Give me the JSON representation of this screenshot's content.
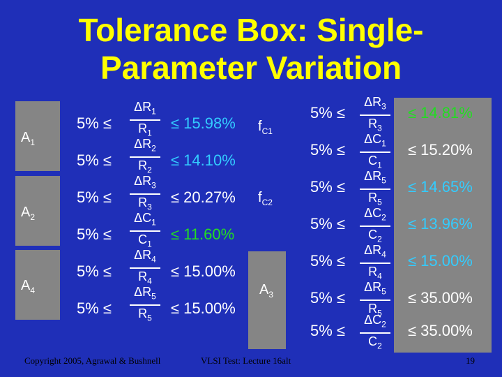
{
  "title_line1": "Tolerance Box: Single-",
  "title_line2": "Parameter Variation",
  "left": {
    "labels": [
      {
        "base": "A",
        "sub": "1"
      },
      {
        "base": "A",
        "sub": "2"
      },
      {
        "base": "A",
        "sub": "4"
      },
      {
        "base": "A",
        "sub": "3"
      }
    ],
    "rows": [
      {
        "lower": "5% ≤",
        "num": "ΔR",
        "num_sub": "1",
        "den": "R",
        "den_sub": "1",
        "upper": "≤ 15.98%"
      },
      {
        "lower": "5% ≤",
        "num": "ΔR",
        "num_sub": "2",
        "den": "R",
        "den_sub": "2",
        "upper": "≤ 14.10%"
      },
      {
        "lower": "5% ≤",
        "num": "ΔR",
        "num_sub": "3",
        "den": "R",
        "den_sub": "3",
        "upper": "≤ 20.27%"
      },
      {
        "lower": "5% ≤",
        "num": "ΔC",
        "num_sub": "1",
        "den": "C",
        "den_sub": "1",
        "upper": "≤ 11.60%"
      },
      {
        "lower": "5% ≤",
        "num": "ΔR",
        "num_sub": "4",
        "den": "R",
        "den_sub": "4",
        "upper": "≤ 15.00%"
      },
      {
        "lower": "5% ≤",
        "num": "ΔR",
        "num_sub": "5",
        "den": "R",
        "den_sub": "5",
        "upper": "≤ 15.00%"
      }
    ]
  },
  "mid_labels": [
    {
      "base": "f",
      "sub": "C1"
    },
    {
      "base": "f",
      "sub": "C2"
    }
  ],
  "right": {
    "rows": [
      {
        "lower": "5% ≤",
        "num": "ΔR",
        "num_sub": "3",
        "den": "R",
        "den_sub": "3",
        "upper": "≤ 14.81%"
      },
      {
        "lower": "5% ≤",
        "num": "ΔC",
        "num_sub": "1",
        "den": "C",
        "den_sub": "1",
        "upper": "≤ 15.20%"
      },
      {
        "lower": "5% ≤",
        "num": "ΔR",
        "num_sub": "5",
        "den": "R",
        "den_sub": "5",
        "upper": "≤ 14.65%"
      },
      {
        "lower": "5% ≤",
        "num": "ΔC",
        "num_sub": "2",
        "den": "C",
        "den_sub": "2",
        "upper": "≤ 13.96%"
      },
      {
        "lower": "5% ≤",
        "num": "ΔR",
        "num_sub": "4",
        "den": "R",
        "den_sub": "4",
        "upper": "≤ 15.00%"
      },
      {
        "lower": "5% ≤",
        "num": "ΔR",
        "num_sub": "5",
        "den": "R",
        "den_sub": "5",
        "upper": "≤ 35.00%"
      },
      {
        "lower": "5% ≤",
        "num": "ΔC",
        "num_sub": "2",
        "den": "C",
        "den_sub": "2",
        "upper": "≤ 35.00%"
      }
    ]
  },
  "colors": {
    "background": "#1f2fb8",
    "title": "#ffff00",
    "panel": "#858585",
    "green": "#22dd22",
    "cyan": "#33ccff"
  },
  "footer": {
    "copyright": "Copyright 2005, Agrawal & Bushnell",
    "lecture": "VLSI Test: Lecture 16alt",
    "page": "19"
  }
}
